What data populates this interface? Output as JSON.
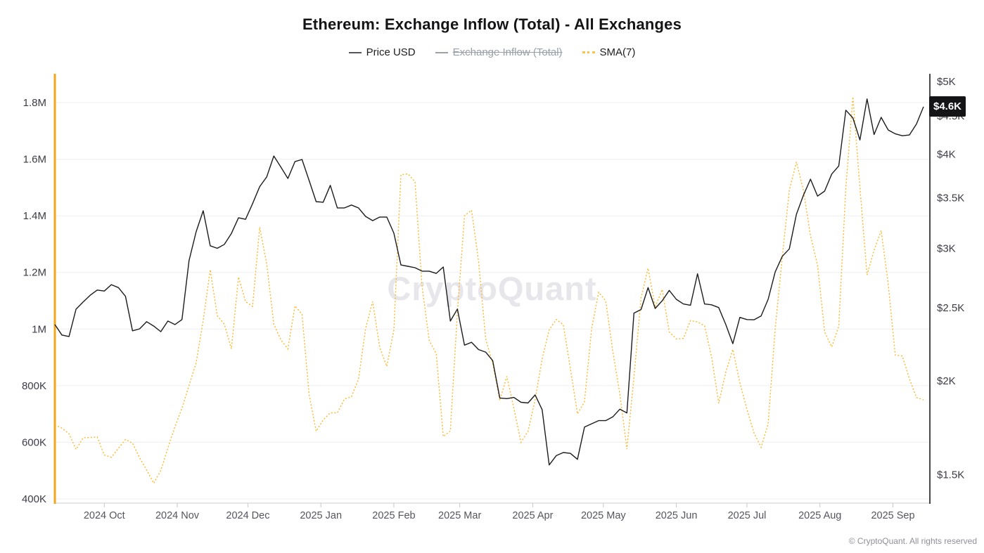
{
  "title": "Ethereum: Exchange Inflow (Total) - All Exchanges",
  "watermark": "CryptoQuant",
  "footer": "© CryptoQuant. All rights reserved",
  "price_badge": "$4.6K",
  "legend": {
    "items": [
      {
        "label": "Price USD",
        "disabled": false,
        "color": "#55555b",
        "dash": "solid"
      },
      {
        "label": "Exchange Inflow (Total)",
        "disabled": true,
        "color": "#9aa0a8",
        "dash": "solid"
      },
      {
        "label": "SMA(7)",
        "disabled": false,
        "color": "#fcc14a",
        "dash": "dotted"
      }
    ]
  },
  "colors": {
    "price_line": "#1c1c1e",
    "sma_line": "#fbb92b",
    "left_axis_spine": "#f3a51c",
    "right_axis_spine": "#1c1c1e",
    "grid": "#efeff2",
    "baseline": "#d6d6db",
    "tick_mark": "#c6c6cc",
    "axis_label": "#3c3c46",
    "x_label": "#55555e",
    "badge_bg": "#141417"
  },
  "chart_data": {
    "type": "line",
    "title": "Ethereum: Exchange Inflow (Total) - All Exchanges",
    "start_date": "2024-09-10",
    "step_days": 3,
    "grid": "horizontal-only",
    "legend_position": "top-center",
    "x_ticks": [
      {
        "date": "2024-10-01",
        "label": "2024 Oct"
      },
      {
        "date": "2024-11-01",
        "label": "2024 Nov"
      },
      {
        "date": "2024-12-01",
        "label": "2024 Dec"
      },
      {
        "date": "2025-01-01",
        "label": "2025 Jan"
      },
      {
        "date": "2025-02-01",
        "label": "2025 Feb"
      },
      {
        "date": "2025-03-01",
        "label": "2025 Mar"
      },
      {
        "date": "2025-04-01",
        "label": "2025 Apr"
      },
      {
        "date": "2025-05-01",
        "label": "2025 May"
      },
      {
        "date": "2025-06-01",
        "label": "2025 Jun"
      },
      {
        "date": "2025-07-01",
        "label": "2025 Jul"
      },
      {
        "date": "2025-08-01",
        "label": "2025 Aug"
      }
    ],
    "last_x_tick": {
      "date": "2025-09-01",
      "label": "2025 Sep"
    },
    "y_left": {
      "scale": "linear",
      "unit": "thousand ETH",
      "range_k": [
        400,
        1800
      ],
      "ticks": [
        {
          "v": 1800,
          "label": "1.8M"
        },
        {
          "v": 1600,
          "label": "1.6M"
        },
        {
          "v": 1400,
          "label": "1.4M"
        },
        {
          "v": 1200,
          "label": "1.2M"
        },
        {
          "v": 1000,
          "label": "1M"
        },
        {
          "v": 800,
          "label": "800K"
        },
        {
          "v": 600,
          "label": "600K"
        },
        {
          "v": 400,
          "label": "400K"
        }
      ]
    },
    "y_right": {
      "scale": "log",
      "unit": "USD",
      "range": [
        1350,
        5000
      ],
      "ticks": [
        {
          "v": 5000,
          "label": "$5K"
        },
        {
          "v": 4500,
          "label": "$4.5K"
        },
        {
          "v": 4000,
          "label": "$4K"
        },
        {
          "v": 3500,
          "label": "$3.5K"
        },
        {
          "v": 3000,
          "label": "$3K"
        },
        {
          "v": 2500,
          "label": "$2.5K"
        },
        {
          "v": 2000,
          "label": "$2K"
        },
        {
          "v": 1500,
          "label": "$1.5K"
        }
      ]
    },
    "current_price_usd": 4628,
    "series": [
      {
        "name": "Price USD",
        "axis": "right",
        "unit": "USD",
        "visible": true,
        "values": [
          2375,
          2300,
          2290,
          2490,
          2545,
          2598,
          2640,
          2632,
          2684,
          2660,
          2590,
          2330,
          2344,
          2396,
          2364,
          2324,
          2401,
          2375,
          2412,
          2890,
          3155,
          3366,
          3023,
          3000,
          3036,
          3140,
          3294,
          3279,
          3440,
          3624,
          3733,
          3980,
          3848,
          3715,
          3913,
          3938,
          3692,
          3461,
          3455,
          3638,
          3395,
          3395,
          3425,
          3395,
          3308,
          3265,
          3301,
          3301,
          3142,
          2851,
          2839,
          2827,
          2797,
          2797,
          2778,
          2833,
          2401,
          2491,
          2230,
          2250,
          2200,
          2183,
          2127,
          1897,
          1893,
          1900,
          1872,
          1868,
          1915,
          1830,
          1545,
          1590,
          1605,
          1601,
          1572,
          1735,
          1753,
          1770,
          1770,
          1790,
          1833,
          1812,
          2460,
          2487,
          2660,
          2495,
          2555,
          2637,
          2566,
          2530,
          2520,
          2775,
          2530,
          2523,
          2502,
          2375,
          2240,
          2428,
          2412,
          2410,
          2439,
          2566,
          2790,
          2927,
          2995,
          3329,
          3530,
          3707,
          3520,
          3574,
          3766,
          3860,
          4580,
          4472,
          4180,
          4740,
          4250,
          4480,
          4310,
          4260,
          4235,
          4245,
          4390,
          4628
        ]
      },
      {
        "name": "Exchange Inflow (Total)",
        "axis": "left",
        "unit": "thousand ETH",
        "visible": false,
        "values": []
      },
      {
        "name": "SMA(7)",
        "axis": "left",
        "unit": "thousand ETH",
        "visible": true,
        "values": [
          661,
          650,
          630,
          575,
          616,
          617,
          619,
          555,
          547,
          579,
          610,
          597,
          545,
          502,
          455,
          500,
          580,
          655,
          720,
          801,
          880,
          1030,
          1210,
          1047,
          1017,
          930,
          1184,
          1097,
          1080,
          1360,
          1230,
          1017,
          962,
          930,
          1082,
          1052,
          768,
          639,
          679,
          704,
          704,
          753,
          761,
          823,
          1002,
          1097,
          935,
          868,
          997,
          1545,
          1548,
          1520,
          1150,
          960,
          913,
          620,
          640,
          1060,
          1400,
          1420,
          1240,
          965,
          878,
          748,
          833,
          720,
          600,
          639,
          750,
          895,
          997,
          1034,
          1015,
          860,
          700,
          743,
          1000,
          1130,
          1100,
          922,
          770,
          576,
          830,
          1110,
          1215,
          1077,
          1140,
          990,
          965,
          967,
          1030,
          1025,
          1012,
          900,
          738,
          848,
          928,
          810,
          716,
          633,
          582,
          665,
          1000,
          1255,
          1490,
          1590,
          1490,
          1330,
          1225,
          990,
          937,
          1010,
          1500,
          1820,
          1500,
          1191,
          1278,
          1348,
          1160,
          908,
          905,
          825,
          758,
          750
        ]
      }
    ]
  }
}
